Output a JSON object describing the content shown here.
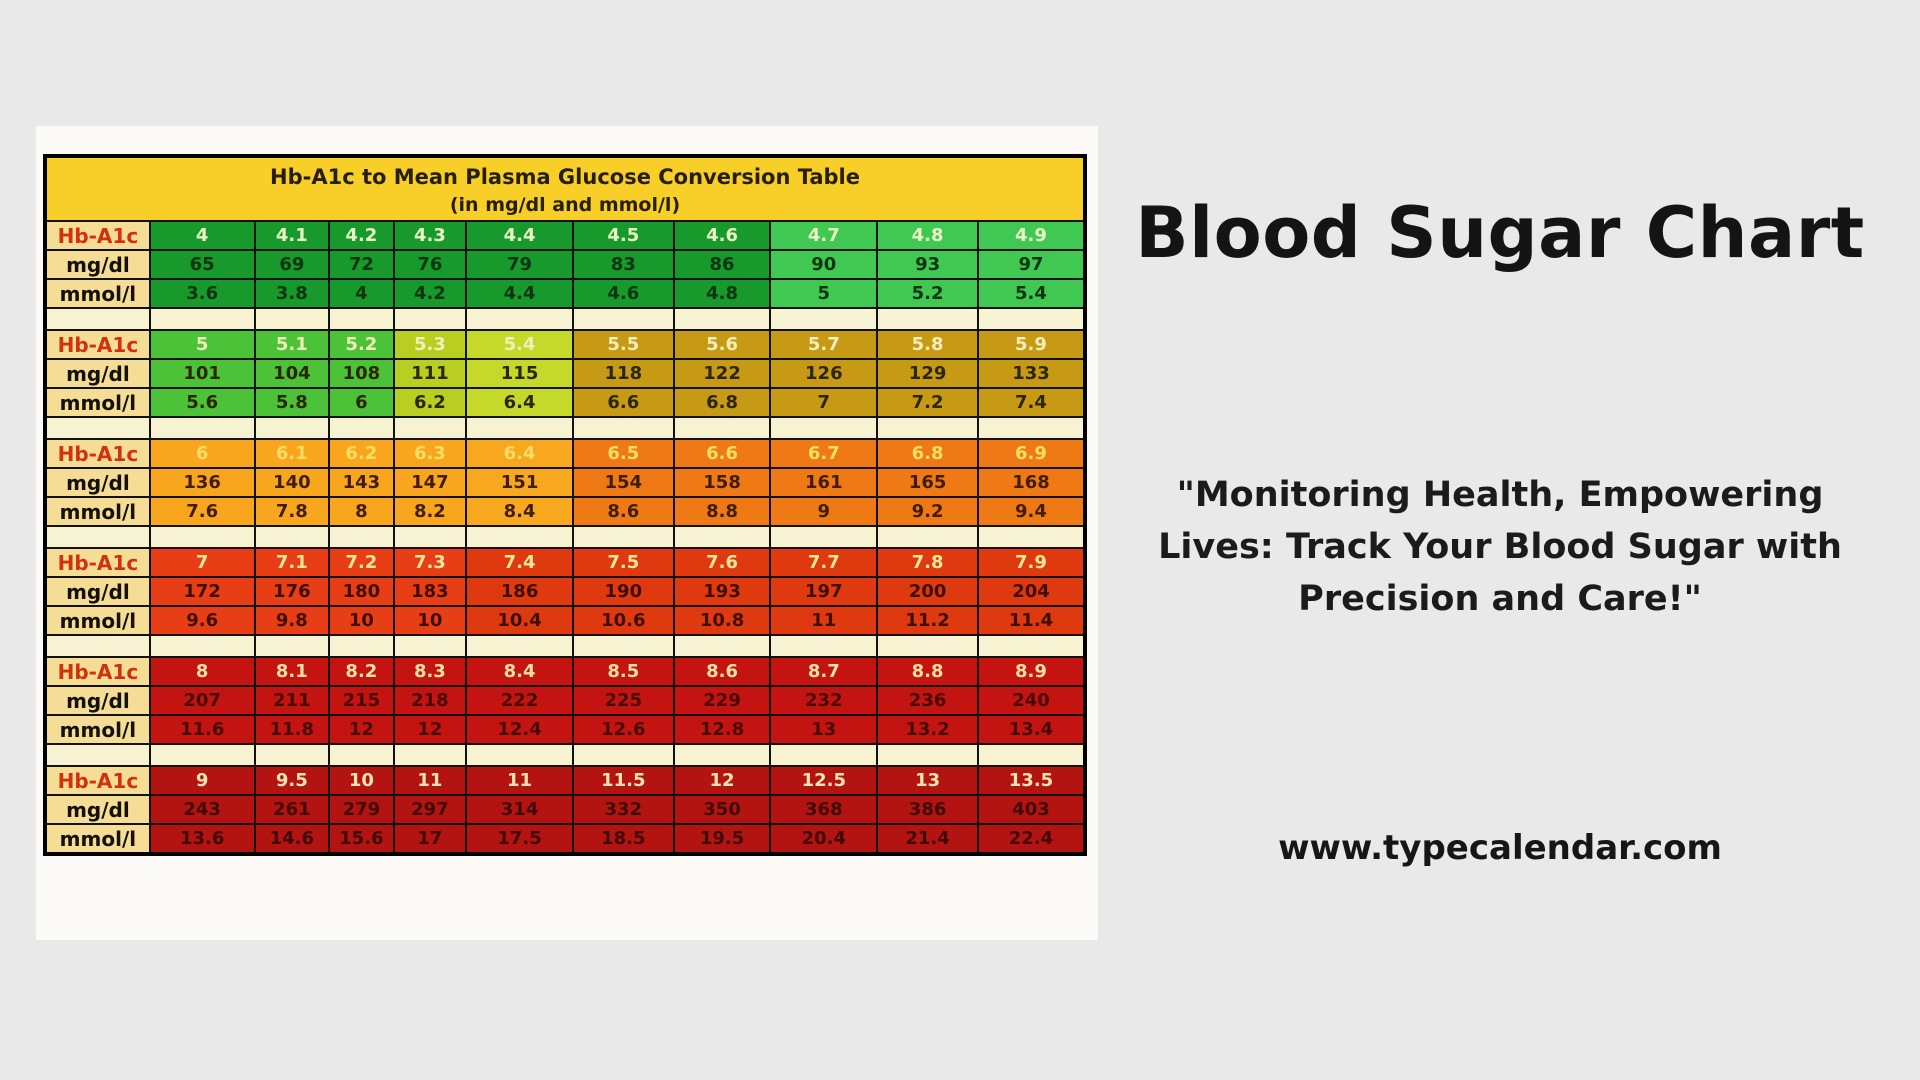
{
  "page": {
    "background": "#e9e9e9"
  },
  "chart_data": {
    "type": "table",
    "title": "Hb-A1c to Mean Plasma Glucose Conversion Table",
    "subtitle": "(in mg/dl and mmol/l)",
    "row_labels": [
      "Hb-A1c",
      "mg/dl",
      "mmol/l"
    ],
    "header_bg": "#f8ce29",
    "label_bg": "#f6dd96",
    "a1c_label_color": "#d2300e",
    "blocks": [
      {
        "a1c": [
          "4",
          "4.1",
          "4.2",
          "4.3",
          "4.4",
          "4.5",
          "4.6",
          "4.7",
          "4.8",
          "4.9"
        ],
        "mgdl": [
          "65",
          "69",
          "72",
          "76",
          "79",
          "83",
          "86",
          "90",
          "93",
          "97"
        ],
        "mmol": [
          "3.6",
          "3.8",
          "4",
          "4.2",
          "4.4",
          "4.6",
          "4.8",
          "5",
          "5.2",
          "5.4"
        ],
        "colors": [
          "#18992b",
          "#18992b",
          "#18992b",
          "#18992b",
          "#18992b",
          "#18992b",
          "#18992b",
          "#41c852",
          "#41c852",
          "#41c852"
        ],
        "a1c_color": "#e9f5c5",
        "val_color": "#0c3511"
      },
      {
        "a1c": [
          "5",
          "5.1",
          "5.2",
          "5.3",
          "5.4",
          "5.5",
          "5.6",
          "5.7",
          "5.8",
          "5.9"
        ],
        "mgdl": [
          "101",
          "104",
          "108",
          "111",
          "115",
          "118",
          "122",
          "126",
          "129",
          "133"
        ],
        "mmol": [
          "5.6",
          "5.8",
          "6",
          "6.2",
          "6.4",
          "6.6",
          "6.8",
          "7",
          "7.2",
          "7.4"
        ],
        "colors": [
          "#4cc238",
          "#4cc238",
          "#4cc238",
          "#b8ce20",
          "#c5d92b",
          "#c79a16",
          "#c79a16",
          "#c79a16",
          "#c79a16",
          "#c79a16"
        ],
        "a1c_color": "#f1eebb",
        "val_color": "#2c2603"
      },
      {
        "a1c": [
          "6",
          "6.1",
          "6.2",
          "6.3",
          "6.4",
          "6.5",
          "6.6",
          "6.7",
          "6.8",
          "6.9"
        ],
        "mgdl": [
          "136",
          "140",
          "143",
          "147",
          "151",
          "154",
          "158",
          "161",
          "165",
          "168"
        ],
        "mmol": [
          "7.6",
          "7.8",
          "8",
          "8.2",
          "8.4",
          "8.6",
          "8.8",
          "9",
          "9.2",
          "9.4"
        ],
        "colors": [
          "#f7a61d",
          "#f7a61d",
          "#f7a61d",
          "#f7a61d",
          "#f7a81e",
          "#ef7a15",
          "#ef7a15",
          "#ef7a15",
          "#ef7a15",
          "#ef7a15"
        ],
        "a1c_color": "#f8df63",
        "val_color": "#411d03"
      },
      {
        "a1c": [
          "7",
          "7.1",
          "7.2",
          "7.3",
          "7.4",
          "7.5",
          "7.6",
          "7.7",
          "7.8",
          "7.9"
        ],
        "mgdl": [
          "172",
          "176",
          "180",
          "183",
          "186",
          "190",
          "193",
          "197",
          "200",
          "204"
        ],
        "mmol": [
          "9.6",
          "9.8",
          "10",
          "10",
          "10.4",
          "10.6",
          "10.8",
          "11",
          "11.2",
          "11.4"
        ],
        "colors": [
          "#e83e16",
          "#e83e16",
          "#e83e16",
          "#e83e16",
          "#de390f",
          "#de390f",
          "#de390f",
          "#de390f",
          "#de390f",
          "#de390f"
        ],
        "a1c_color": "#f7e79a",
        "val_color": "#3f0e04"
      },
      {
        "a1c": [
          "8",
          "8.1",
          "8.2",
          "8.3",
          "8.4",
          "8.5",
          "8.6",
          "8.7",
          "8.8",
          "8.9"
        ],
        "mgdl": [
          "207",
          "211",
          "215",
          "218",
          "222",
          "225",
          "229",
          "232",
          "236",
          "240"
        ],
        "mmol": [
          "11.6",
          "11.8",
          "12",
          "12",
          "12.4",
          "12.6",
          "12.8",
          "13",
          "13.2",
          "13.4"
        ],
        "colors": [
          "#c41411",
          "#c41411",
          "#c41411",
          "#c41411",
          "#c41411",
          "#c41411",
          "#c41411",
          "#c41411",
          "#c41411",
          "#c41411"
        ],
        "a1c_color": "#f5e2a2",
        "val_color": "#470b07"
      },
      {
        "a1c": [
          "9",
          "9.5",
          "10",
          "11",
          "11",
          "11.5",
          "12",
          "12.5",
          "13",
          "13.5"
        ],
        "mgdl": [
          "243",
          "261",
          "279",
          "297",
          "314",
          "332",
          "350",
          "368",
          "386",
          "403"
        ],
        "mmol": [
          "13.6",
          "14.6",
          "15.6",
          "17",
          "17.5",
          "18.5",
          "19.5",
          "20.4",
          "21.4",
          "22.4"
        ],
        "colors": [
          "#b31311",
          "#b31311",
          "#b31311",
          "#b31311",
          "#b31311",
          "#b31311",
          "#b31311",
          "#b31311",
          "#b31311",
          "#b31311"
        ],
        "a1c_color": "#f6e6ae",
        "val_color": "#400a07"
      }
    ]
  },
  "sidebar": {
    "title": "Blood Sugar Chart",
    "quote": "\"Monitoring Health, Empowering Lives: Track Your Blood Sugar with Precision and Care!\"",
    "website": "www.typecalendar.com"
  }
}
